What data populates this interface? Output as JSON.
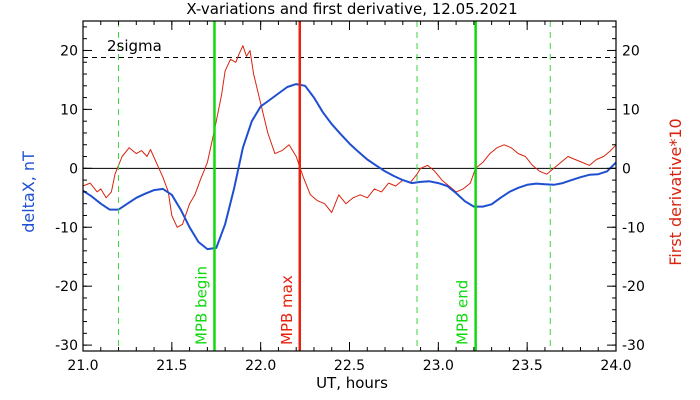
{
  "colors": {
    "background": "#ffffff",
    "axes": "#000000",
    "deltaX": "#1f4fd1",
    "derivative": "#d9230f",
    "mpb_boundary": "#11d811",
    "mpb_max": "#e8210c",
    "dashed_green": "#3bd63b",
    "sigma_line": "#000000"
  },
  "chart_data": {
    "type": "line",
    "title": "X-variations and first derivative, 12.05.2021",
    "xlabel": "UT, hours",
    "ylabel_left": "deltaX, nT",
    "ylabel_right": "First derivative*10",
    "xlim": [
      21.0,
      24.0
    ],
    "ylim": [
      -31,
      25
    ],
    "x_ticks": [
      21.0,
      21.5,
      22.0,
      22.5,
      23.0,
      23.5,
      24.0
    ],
    "x_tick_labels": [
      "21.0",
      "21.5",
      "22.0",
      "22.5",
      "23.0",
      "23.5",
      "24.0"
    ],
    "y_ticks": [
      -30,
      -20,
      -10,
      0,
      10,
      20
    ],
    "y_tick_labels_left": [
      "-30",
      "-20",
      "-10",
      "0",
      "10",
      "20"
    ],
    "y_tick_labels_right": [
      "-30",
      "-20",
      "-10",
      "0",
      "10",
      "20"
    ],
    "sigma_level": 18.8,
    "sigma_label": "2sigma",
    "zero_line": 0,
    "vertical_markers": [
      {
        "x": 21.74,
        "label": "MPB begin",
        "style": "solid",
        "color_key": "mpb_boundary"
      },
      {
        "x": 22.22,
        "label": "MPB max",
        "style": "solid",
        "color_key": "mpb_max"
      },
      {
        "x": 23.21,
        "label": "MPB end",
        "style": "solid",
        "color_key": "mpb_boundary"
      },
      {
        "x": 21.2,
        "label": "",
        "style": "dashed",
        "color_key": "dashed_green"
      },
      {
        "x": 22.88,
        "label": "",
        "style": "dashed",
        "color_key": "dashed_green"
      },
      {
        "x": 23.63,
        "label": "",
        "style": "dashed",
        "color_key": "dashed_green"
      }
    ],
    "series": [
      {
        "name": "deltaX, nT",
        "color_key": "deltaX",
        "width": 2,
        "x": [
          21.0,
          21.05,
          21.1,
          21.15,
          21.2,
          21.25,
          21.3,
          21.35,
          21.4,
          21.45,
          21.5,
          21.55,
          21.6,
          21.65,
          21.7,
          21.75,
          21.8,
          21.85,
          21.9,
          21.95,
          22.0,
          22.05,
          22.1,
          22.15,
          22.2,
          22.25,
          22.3,
          22.35,
          22.4,
          22.45,
          22.5,
          22.55,
          22.6,
          22.65,
          22.7,
          22.75,
          22.8,
          22.85,
          22.9,
          22.95,
          23.0,
          23.05,
          23.1,
          23.15,
          23.2,
          23.25,
          23.3,
          23.35,
          23.4,
          23.45,
          23.5,
          23.55,
          23.6,
          23.65,
          23.7,
          23.75,
          23.8,
          23.85,
          23.9,
          23.95,
          24.0
        ],
        "values": [
          -3.8,
          -4.8,
          -6.0,
          -7.0,
          -7.0,
          -6.0,
          -5.0,
          -4.3,
          -3.7,
          -3.5,
          -4.5,
          -7.0,
          -10.0,
          -12.5,
          -13.7,
          -13.5,
          -9.5,
          -3.5,
          3.5,
          8.0,
          10.5,
          11.6,
          12.7,
          13.8,
          14.3,
          14.0,
          12.0,
          9.5,
          7.5,
          5.8,
          4.2,
          2.8,
          1.5,
          0.5,
          -0.5,
          -1.3,
          -2.0,
          -2.5,
          -2.3,
          -2.2,
          -2.5,
          -3.0,
          -4.2,
          -5.6,
          -6.5,
          -6.5,
          -6.1,
          -5.0,
          -4.0,
          -3.3,
          -2.8,
          -2.6,
          -2.7,
          -2.8,
          -2.5,
          -2.0,
          -1.5,
          -1.1,
          -1.0,
          -0.5,
          1.0
        ]
      },
      {
        "name": "First derivative*10",
        "color_key": "derivative",
        "width": 1,
        "x": [
          21.0,
          21.04,
          21.08,
          21.1,
          21.13,
          21.16,
          21.18,
          21.22,
          21.26,
          21.3,
          21.33,
          21.36,
          21.38,
          21.42,
          21.45,
          21.48,
          21.5,
          21.53,
          21.56,
          21.6,
          21.63,
          21.66,
          21.7,
          21.74,
          21.78,
          21.8,
          21.83,
          21.86,
          21.88,
          21.9,
          21.92,
          21.94,
          21.96,
          22.0,
          22.04,
          22.08,
          22.12,
          22.16,
          22.2,
          22.24,
          22.28,
          22.32,
          22.36,
          22.4,
          22.44,
          22.48,
          22.52,
          22.56,
          22.6,
          22.64,
          22.68,
          22.72,
          22.76,
          22.8,
          22.84,
          22.88,
          22.9,
          22.94,
          22.98,
          23.02,
          23.06,
          23.1,
          23.14,
          23.18,
          23.21,
          23.25,
          23.29,
          23.33,
          23.37,
          23.41,
          23.45,
          23.49,
          23.53,
          23.57,
          23.61,
          23.65,
          23.69,
          23.73,
          23.77,
          23.81,
          23.85,
          23.89,
          23.93,
          23.97,
          24.0
        ],
        "values": [
          -3.0,
          -2.5,
          -4.0,
          -3.5,
          -5.0,
          -4.0,
          -1.0,
          2.0,
          3.5,
          2.5,
          3.0,
          2.0,
          3.2,
          0.5,
          -1.5,
          -4.0,
          -8.0,
          -10.0,
          -9.5,
          -6.0,
          -4.5,
          -2.0,
          1.0,
          6.5,
          12.5,
          16.5,
          18.5,
          18.0,
          19.5,
          20.8,
          19.0,
          20.0,
          16.0,
          11.0,
          6.0,
          2.5,
          3.0,
          4.0,
          2.0,
          -1.5,
          -4.5,
          -5.5,
          -6.0,
          -7.5,
          -4.5,
          -6.0,
          -5.0,
          -4.5,
          -5.0,
          -3.5,
          -4.0,
          -2.5,
          -3.0,
          -2.0,
          -2.5,
          -1.0,
          0.0,
          0.5,
          -0.5,
          -2.0,
          -3.0,
          -4.0,
          -3.5,
          -2.5,
          0.0,
          1.0,
          2.5,
          3.5,
          4.0,
          3.5,
          2.5,
          2.0,
          0.5,
          -0.5,
          -1.0,
          0.0,
          1.0,
          2.0,
          1.5,
          1.0,
          0.5,
          1.5,
          2.0,
          3.0,
          4.0
        ]
      }
    ]
  }
}
